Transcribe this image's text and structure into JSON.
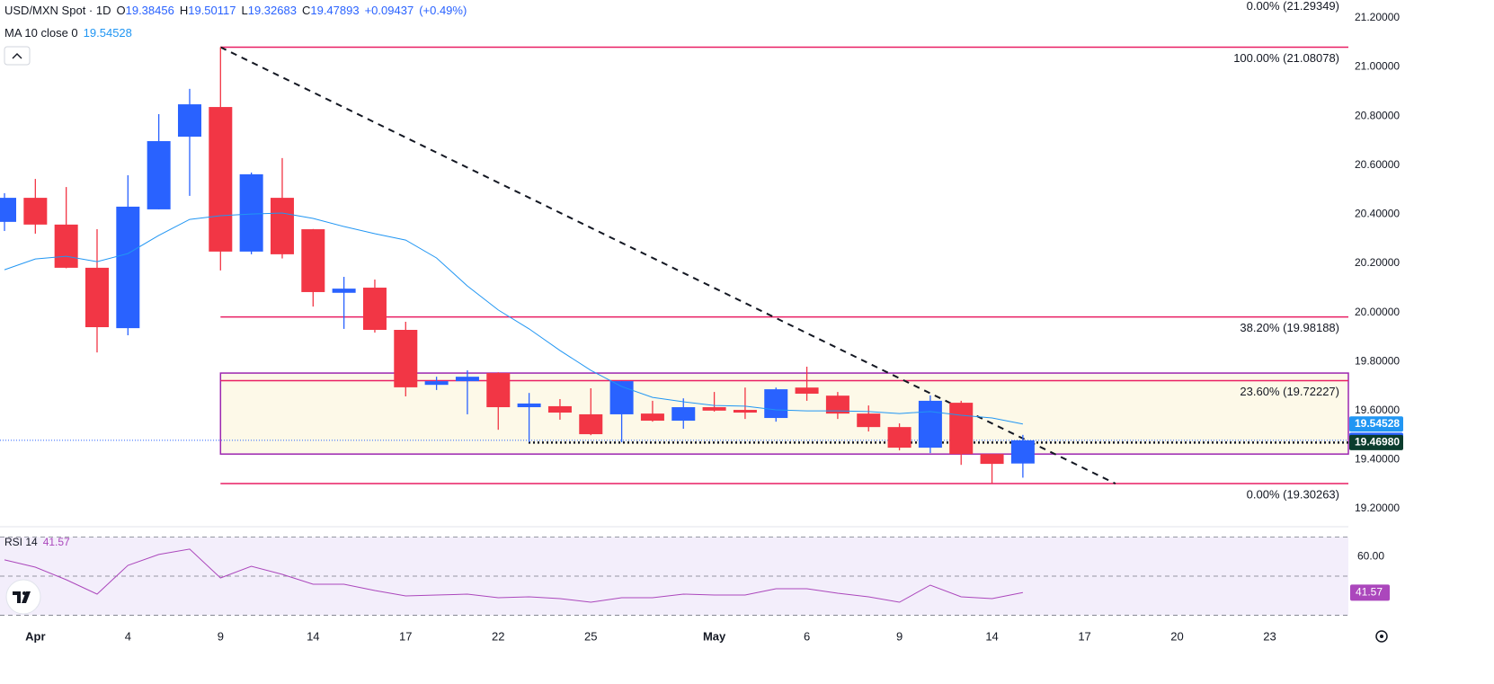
{
  "chart_data": {
    "type": "candlestick",
    "title": "USD/MXN Spot · 1D",
    "header": {
      "open_key": "O",
      "high_key": "H",
      "low_key": "L",
      "close_key": "C",
      "change": "+0.09437",
      "change_pct": "(+0.49%)"
    },
    "categories": [
      null,
      "Apr",
      null,
      null,
      "4",
      null,
      null,
      "9",
      null,
      null,
      "14",
      null,
      null,
      "17",
      null,
      null,
      "22",
      null,
      null,
      "25",
      null,
      null,
      null,
      "May",
      null,
      null,
      "6",
      null,
      null,
      "9",
      null,
      null,
      "14",
      null,
      null,
      "17",
      null,
      null,
      "20",
      null,
      null,
      "23"
    ],
    "open": [
      20.369,
      20.467,
      20.358,
      20.182,
      19.936,
      20.42,
      20.716,
      20.837,
      20.248,
      20.467,
      20.339,
      20.08,
      20.101,
      19.929,
      19.705,
      19.72,
      19.753,
      19.614,
      19.618,
      19.585,
      19.585,
      19.588,
      19.559,
      19.614,
      19.603,
      19.57,
      19.694,
      19.661,
      19.588,
      19.533,
      19.449,
      19.632,
      19.423,
      19.38456,
      null,
      null,
      null,
      null,
      null,
      null,
      null,
      null
    ],
    "high": [
      20.486,
      20.544,
      20.511,
      20.339,
      20.559,
      20.808,
      20.911,
      21.08078,
      20.57,
      20.629,
      20.34,
      20.145,
      20.134,
      19.962,
      19.738,
      19.764,
      19.756,
      19.672,
      19.647,
      19.691,
      19.72,
      19.64,
      19.65,
      19.676,
      19.694,
      19.694,
      19.779,
      19.676,
      19.621,
      19.548,
      19.662,
      19.64,
      19.423,
      19.50117,
      null,
      null,
      null,
      null,
      null,
      null,
      null,
      null
    ],
    "low": [
      20.332,
      20.321,
      20.18,
      19.837,
      19.907,
      20.42,
      20.475,
      20.171,
      20.237,
      20.22,
      20.024,
      19.933,
      19.918,
      19.658,
      19.684,
      19.585,
      19.522,
      19.471,
      19.563,
      19.5,
      19.471,
      19.555,
      19.526,
      19.596,
      19.566,
      19.555,
      19.64,
      19.566,
      19.515,
      19.438,
      19.427,
      19.379,
      19.30263,
      19.32683,
      null,
      null,
      null,
      null,
      null,
      null,
      null,
      null
    ],
    "close": [
      20.467,
      20.358,
      20.182,
      19.94,
      20.431,
      20.698,
      20.848,
      20.248,
      20.563,
      20.237,
      20.083,
      20.097,
      19.929,
      19.695,
      19.72,
      19.738,
      19.614,
      19.629,
      19.592,
      19.504,
      19.72,
      19.559,
      19.614,
      19.6,
      19.592,
      19.687,
      19.669,
      19.588,
      19.533,
      19.449,
      19.64,
      19.423,
      19.383,
      19.47893,
      null,
      null,
      null,
      null,
      null,
      null,
      null,
      null
    ],
    "up_color": "#2962ff",
    "down_color": "#f23645",
    "ma": {
      "name": "MA 10 close 0",
      "color": "#2196f3",
      "values": [
        20.174,
        20.218,
        20.229,
        20.207,
        20.24,
        20.314,
        20.379,
        20.394,
        20.401,
        20.405,
        20.383,
        20.35,
        20.321,
        20.295,
        20.222,
        20.108,
        20.01,
        19.933,
        19.845,
        19.764,
        19.698,
        19.654,
        19.636,
        19.621,
        19.618,
        19.603,
        19.599,
        19.599,
        19.596,
        19.588,
        19.596,
        19.581,
        19.57,
        19.54528,
        null,
        null,
        null,
        null,
        null,
        null,
        null,
        null
      ]
    },
    "ylim": [
      19.149,
      21.273
    ],
    "yticks": [
      {
        "value": 21.2,
        "label": "21.20000"
      },
      {
        "value": 21.0,
        "label": "21.00000"
      },
      {
        "value": 20.8,
        "label": "20.80000"
      },
      {
        "value": 20.6,
        "label": "20.60000"
      },
      {
        "value": 20.4,
        "label": "20.40000"
      },
      {
        "value": 20.2,
        "label": "20.20000"
      },
      {
        "value": 20.0,
        "label": "20.00000"
      },
      {
        "value": 19.8,
        "label": "19.80000"
      },
      {
        "value": 19.6,
        "label": "19.60000"
      },
      {
        "value": 19.4,
        "label": "19.40000"
      },
      {
        "value": 19.2,
        "label": "19.20000"
      }
    ],
    "fib_levels": [
      {
        "value": 21.29349,
        "label": "0.00% (21.29349)",
        "color": "#b2b5be"
      },
      {
        "value": 21.08078,
        "label": "100.00% (21.08078)",
        "color": "#e91e63"
      },
      {
        "value": 19.98188,
        "label": "38.20% (19.98188)",
        "color": "#e91e63"
      },
      {
        "value": 19.72227,
        "label": "23.60% (19.72227)",
        "color": "#e91e63"
      },
      {
        "value": 19.30263,
        "label": "0.00% (19.30263)",
        "color": "#e91e63"
      }
    ],
    "zone": {
      "values": [
        19.753,
        19.423
      ],
      "color": "#9c27b0",
      "fill": "#fdf9e8"
    },
    "trend_line": {
      "x": [
        7,
        36
      ],
      "values": [
        21.08078,
        19.30263
      ]
    },
    "level_line": {
      "value": 19.4698,
      "label": "19.46980",
      "color": "#0b3d2e"
    },
    "rsi": {
      "name": "RSI 14",
      "color": "#ab47bc",
      "values": [
        58.28,
        54.6,
        48.16,
        40.8,
        55.52,
        61.03,
        63.79,
        49.08,
        55.06,
        50.92,
        45.86,
        45.86,
        42.64,
        39.89,
        40.34,
        40.8,
        38.97,
        39.43,
        38.51,
        36.67,
        38.97,
        38.97,
        40.8,
        40.34,
        40.34,
        43.56,
        43.56,
        41.26,
        39.43,
        36.67,
        45.4,
        39.43,
        38.51,
        41.57,
        null,
        null,
        null,
        null,
        null,
        null,
        null,
        null
      ],
      "ylim": [
        27.5,
        73.4
      ],
      "levels": [
        70,
        50,
        30
      ],
      "yticks": [
        {
          "value": 60,
          "label": "60.00"
        }
      ]
    }
  }
}
